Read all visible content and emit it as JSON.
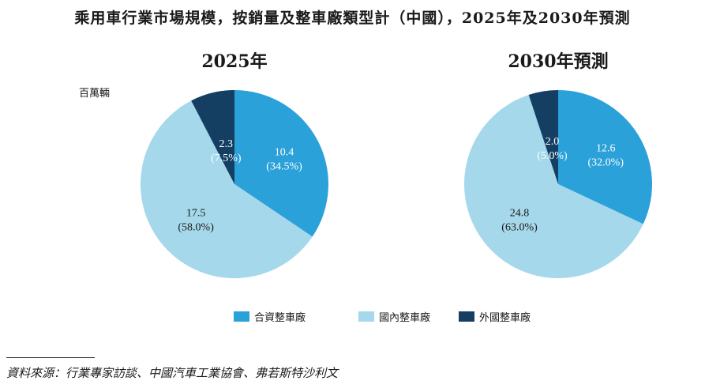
{
  "title": "乘用車行業市場規模，按銷量及整車廠類型計（中國），2025年及2030年預測",
  "unit": "百萬輛",
  "colors": {
    "jv": "#2ba1d9",
    "domestic": "#a5d8ea",
    "foreign": "#143e62",
    "label_dark": "#1a1a1a",
    "label_light": "#ffffff"
  },
  "legend": [
    {
      "label": "合資整車廠",
      "color": "#2ba1d9"
    },
    {
      "label": "國內整車廠",
      "color": "#a5d8ea"
    },
    {
      "label": "外國整車廠",
      "color": "#143e62"
    }
  ],
  "chart_data": [
    {
      "type": "pie",
      "title": "2025年",
      "unit": "百萬輛",
      "slices": [
        {
          "name": "合資整車廠",
          "value": 10.4,
          "percent": "34.5%",
          "value_label": "10.4",
          "percent_label": "(34.5%)"
        },
        {
          "name": "國內整車廠",
          "value": 17.5,
          "percent": "58.0%",
          "value_label": "17.5",
          "percent_label": "(58.0%)"
        },
        {
          "name": "外國整車廠",
          "value": 2.3,
          "percent": "7.5%",
          "value_label": "2.3",
          "percent_label": "(7.5%)"
        }
      ]
    },
    {
      "type": "pie",
      "title": "2030年預測",
      "unit": "百萬輛",
      "slices": [
        {
          "name": "合資整車廠",
          "value": 12.6,
          "percent": "32.0%",
          "value_label": "12.6",
          "percent_label": "(32.0%)"
        },
        {
          "name": "國內整車廠",
          "value": 24.8,
          "percent": "63.0%",
          "value_label": "24.8",
          "percent_label": "(63.0%)"
        },
        {
          "name": "外國整車廠",
          "value": 2.0,
          "percent": "5.0%",
          "value_label": "2.0",
          "percent_label": "(5.0%)"
        }
      ]
    }
  ],
  "source": "資料來源：行業專家訪談、中國汽車工業協會、弗若斯特沙利文"
}
